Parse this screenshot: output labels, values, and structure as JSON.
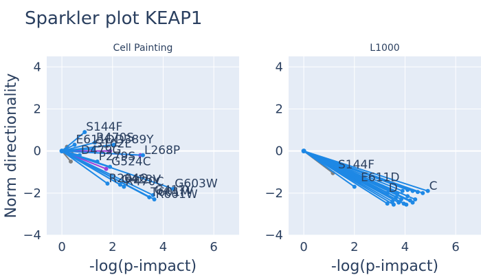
{
  "title": "Sparkler plot KEAP1",
  "ylabel": "Norm directionality",
  "colors": {
    "plot_bg": "#e5ecf6",
    "grid": "#ffffff",
    "text": "#2a3f5f",
    "gray": "#808080",
    "blue": "#1e88e5",
    "purple": "#9b3ed9"
  },
  "chart_data": [
    {
      "type": "scatter",
      "subtitle": "Cell Painting",
      "xlabel": "-log(p-impact)",
      "xlim": [
        -0.6,
        7.0
      ],
      "ylim": [
        -4.0,
        4.5
      ],
      "xticks": [
        0,
        2,
        4,
        6
      ],
      "yticks": [
        -4,
        -2,
        0,
        2,
        4
      ],
      "points": [
        {
          "label": "",
          "x": 0.2,
          "y": 0.2,
          "color": "gray"
        },
        {
          "label": "",
          "x": 0.35,
          "y": -0.5,
          "color": "gray"
        },
        {
          "label": "",
          "x": 0.4,
          "y": -0.15,
          "color": "gray"
        },
        {
          "label": "",
          "x": 1.75,
          "y": -0.85,
          "color": "purple"
        },
        {
          "label": "",
          "x": 3.1,
          "y": -0.2,
          "color": "purple"
        },
        {
          "label": "",
          "x": 1.9,
          "y": 0.0,
          "color": "purple"
        },
        {
          "label": "S144F",
          "x": 0.9,
          "y": 0.9,
          "color": "blue"
        },
        {
          "label": "E611D",
          "x": 0.5,
          "y": 0.3,
          "color": "blue"
        },
        {
          "label": "R470S",
          "x": 1.3,
          "y": 0.4,
          "color": "blue"
        },
        {
          "label": "S102L",
          "x": 1.25,
          "y": 0.1,
          "color": "blue"
        },
        {
          "label": "D389Y",
          "x": 2.05,
          "y": 0.3,
          "color": "blue"
        },
        {
          "label": "L268P",
          "x": 3.2,
          "y": -0.2,
          "color": "blue"
        },
        {
          "label": "D479G",
          "x": 0.7,
          "y": -0.2,
          "color": "blue"
        },
        {
          "label": "P279S",
          "x": 1.4,
          "y": -0.5,
          "color": "blue"
        },
        {
          "label": "G524C",
          "x": 1.9,
          "y": -0.75,
          "color": "blue"
        },
        {
          "label": "R204Q",
          "x": 1.8,
          "y": -1.55,
          "color": "blue"
        },
        {
          "label": "G423V",
          "x": 2.3,
          "y": -1.6,
          "color": "blue"
        },
        {
          "label": "R470C",
          "x": 2.45,
          "y": -1.7,
          "color": "blue"
        },
        {
          "label": "G603W",
          "x": 4.4,
          "y": -1.8,
          "color": "blue"
        },
        {
          "label": "G417V",
          "x": 3.6,
          "y": -2.1,
          "color": "blue"
        },
        {
          "label": "T601M",
          "x": 3.45,
          "y": -2.2,
          "color": "blue"
        },
        {
          "label": "R601W",
          "x": 3.65,
          "y": -2.3,
          "color": "blue"
        }
      ]
    },
    {
      "type": "scatter",
      "subtitle": "L1000",
      "xlabel": "-log(p-impact)",
      "xlim": [
        -0.6,
        7.0
      ],
      "ylim": [
        -4.0,
        4.5
      ],
      "xticks": [
        0,
        2,
        4,
        6
      ],
      "yticks": [
        -4,
        -2,
        0,
        2,
        4
      ],
      "points": [
        {
          "label": "",
          "x": 1.15,
          "y": -1.05,
          "color": "gray"
        },
        {
          "label": "S144F",
          "x": 1.3,
          "y": -0.9,
          "color": "blue"
        },
        {
          "label": "E611D",
          "x": 2.2,
          "y": -1.5,
          "color": "blue"
        },
        {
          "label": "",
          "x": 2.0,
          "y": -1.7,
          "color": "blue"
        },
        {
          "label": "",
          "x": 3.3,
          "y": -2.5,
          "color": "blue"
        },
        {
          "label": "",
          "x": 3.5,
          "y": -2.4,
          "color": "blue"
        },
        {
          "label": "",
          "x": 3.55,
          "y": -2.55,
          "color": "blue"
        },
        {
          "label": "",
          "x": 3.75,
          "y": -2.45,
          "color": "blue"
        },
        {
          "label": "",
          "x": 3.85,
          "y": -2.3,
          "color": "blue"
        },
        {
          "label": "",
          "x": 3.95,
          "y": -2.5,
          "color": "blue"
        },
        {
          "label": "",
          "x": 4.05,
          "y": -2.55,
          "color": "blue"
        },
        {
          "label": "",
          "x": 4.2,
          "y": -2.35,
          "color": "blue"
        },
        {
          "label": "",
          "x": 4.3,
          "y": -2.45,
          "color": "blue"
        },
        {
          "label": "",
          "x": 3.65,
          "y": -2.2,
          "color": "blue"
        },
        {
          "label": "",
          "x": 4.1,
          "y": -2.15,
          "color": "blue"
        },
        {
          "label": "",
          "x": 4.4,
          "y": -2.3,
          "color": "blue"
        },
        {
          "label": "D",
          "x": 3.3,
          "y": -2.0,
          "color": "blue"
        },
        {
          "label": "",
          "x": 3.7,
          "y": -2.0,
          "color": "blue"
        },
        {
          "label": "",
          "x": 3.9,
          "y": -1.9,
          "color": "blue"
        },
        {
          "label": "",
          "x": 4.1,
          "y": -1.85,
          "color": "blue"
        },
        {
          "label": "",
          "x": 4.3,
          "y": -1.9,
          "color": "blue"
        },
        {
          "label": "",
          "x": 4.5,
          "y": -1.95,
          "color": "blue"
        },
        {
          "label": "",
          "x": 4.7,
          "y": -2.0,
          "color": "blue"
        },
        {
          "label": "C",
          "x": 4.9,
          "y": -1.9,
          "color": "blue"
        }
      ]
    }
  ]
}
